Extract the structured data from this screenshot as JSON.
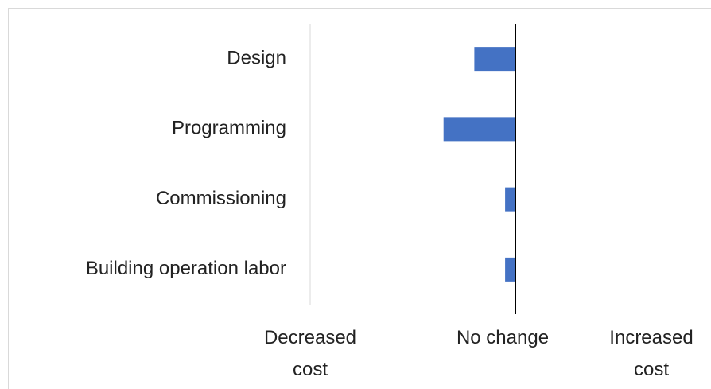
{
  "chart_data": {
    "type": "bar",
    "orientation": "horizontal",
    "categories": [
      "Design",
      "Programming",
      "Commissioning",
      "Building operation labor"
    ],
    "values": [
      -0.2,
      -0.35,
      -0.05,
      -0.05
    ],
    "color": "#4472c4",
    "xlim": [
      -1,
      1
    ],
    "xticks": [
      {
        "value": -1,
        "label": "Decreased cost"
      },
      {
        "value": 0,
        "label": "No change"
      },
      {
        "value": 1,
        "label": "Increased cost"
      }
    ]
  }
}
